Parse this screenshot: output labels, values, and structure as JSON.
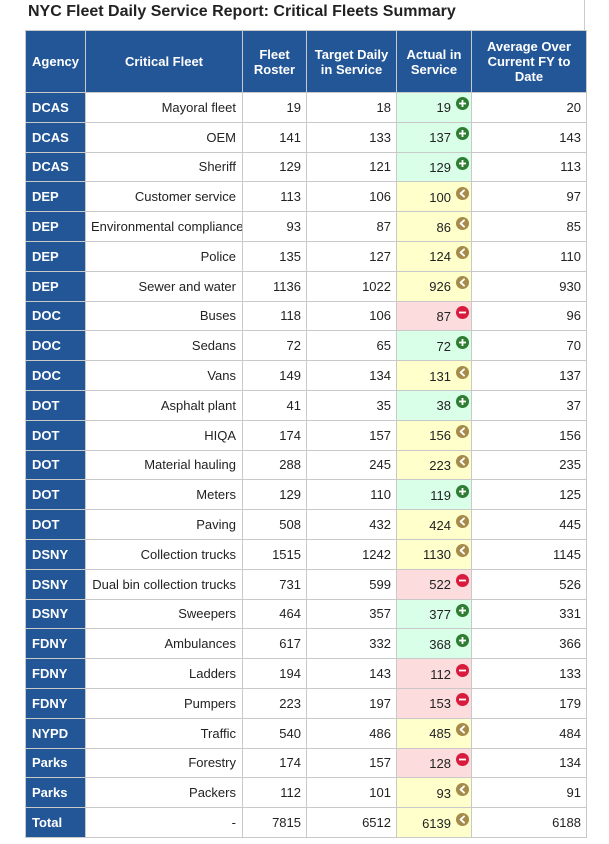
{
  "title": "NYC Fleet Daily Service Report: Critical Fleets Summary",
  "colors": {
    "header_bg": "#235697",
    "header_text": "#ffffff",
    "green_bg": "#d9ffe9",
    "yellow_bg": "#ffffcc",
    "red_bg": "#fcdcdc",
    "green_icon": "#2e7d32",
    "yellow_icon": "#a58a4a",
    "red_icon": "#d81b3c"
  },
  "columns": [
    "Agency",
    "Critical Fleet",
    "Fleet Roster",
    "Target Daily in Service",
    "Actual in Service",
    "Average Over Current FY to Date"
  ],
  "rows": [
    {
      "agency": "DCAS",
      "fleet": "Mayoral fleet",
      "roster": "19",
      "target": "18",
      "actual": "19",
      "average": "20",
      "status": "green",
      "icon": "plus-circle-icon"
    },
    {
      "agency": "DCAS",
      "fleet": "OEM",
      "roster": "141",
      "target": "133",
      "actual": "137",
      "average": "143",
      "status": "green",
      "icon": "plus-circle-icon"
    },
    {
      "agency": "DCAS",
      "fleet": "Sheriff",
      "roster": "129",
      "target": "121",
      "actual": "129",
      "average": "113",
      "status": "green",
      "icon": "plus-circle-icon"
    },
    {
      "agency": "DEP",
      "fleet": "Customer service",
      "roster": "113",
      "target": "106",
      "actual": "100",
      "average": "97",
      "status": "yellow",
      "icon": "chevron-left-circle-icon"
    },
    {
      "agency": "DEP",
      "fleet": "Environmental compliance",
      "roster": "93",
      "target": "87",
      "actual": "86",
      "average": "85",
      "status": "yellow",
      "icon": "chevron-left-circle-icon"
    },
    {
      "agency": "DEP",
      "fleet": "Police",
      "roster": "135",
      "target": "127",
      "actual": "124",
      "average": "110",
      "status": "yellow",
      "icon": "chevron-left-circle-icon"
    },
    {
      "agency": "DEP",
      "fleet": "Sewer and water",
      "roster": "1136",
      "target": "1022",
      "actual": "926",
      "average": "930",
      "status": "yellow",
      "icon": "chevron-left-circle-icon"
    },
    {
      "agency": "DOC",
      "fleet": "Buses",
      "roster": "118",
      "target": "106",
      "actual": "87",
      "average": "96",
      "status": "red",
      "icon": "minus-circle-icon"
    },
    {
      "agency": "DOC",
      "fleet": "Sedans",
      "roster": "72",
      "target": "65",
      "actual": "72",
      "average": "70",
      "status": "green",
      "icon": "plus-circle-icon"
    },
    {
      "agency": "DOC",
      "fleet": "Vans",
      "roster": "149",
      "target": "134",
      "actual": "131",
      "average": "137",
      "status": "yellow",
      "icon": "chevron-left-circle-icon"
    },
    {
      "agency": "DOT",
      "fleet": "Asphalt plant",
      "roster": "41",
      "target": "35",
      "actual": "38",
      "average": "37",
      "status": "green",
      "icon": "plus-circle-icon"
    },
    {
      "agency": "DOT",
      "fleet": "HIQA",
      "roster": "174",
      "target": "157",
      "actual": "156",
      "average": "156",
      "status": "yellow",
      "icon": "chevron-left-circle-icon"
    },
    {
      "agency": "DOT",
      "fleet": "Material hauling",
      "roster": "288",
      "target": "245",
      "actual": "223",
      "average": "235",
      "status": "yellow",
      "icon": "chevron-left-circle-icon"
    },
    {
      "agency": "DOT",
      "fleet": "Meters",
      "roster": "129",
      "target": "110",
      "actual": "119",
      "average": "125",
      "status": "green",
      "icon": "plus-circle-icon"
    },
    {
      "agency": "DOT",
      "fleet": "Paving",
      "roster": "508",
      "target": "432",
      "actual": "424",
      "average": "445",
      "status": "yellow",
      "icon": "chevron-left-circle-icon"
    },
    {
      "agency": "DSNY",
      "fleet": "Collection trucks",
      "roster": "1515",
      "target": "1242",
      "actual": "1130",
      "average": "1145",
      "status": "yellow",
      "icon": "chevron-left-circle-icon"
    },
    {
      "agency": "DSNY",
      "fleet": "Dual bin collection trucks",
      "roster": "731",
      "target": "599",
      "actual": "522",
      "average": "526",
      "status": "red",
      "icon": "minus-circle-icon"
    },
    {
      "agency": "DSNY",
      "fleet": "Sweepers",
      "roster": "464",
      "target": "357",
      "actual": "377",
      "average": "331",
      "status": "green",
      "icon": "plus-circle-icon"
    },
    {
      "agency": "FDNY",
      "fleet": "Ambulances",
      "roster": "617",
      "target": "332",
      "actual": "368",
      "average": "366",
      "status": "green",
      "icon": "plus-circle-icon"
    },
    {
      "agency": "FDNY",
      "fleet": "Ladders",
      "roster": "194",
      "target": "143",
      "actual": "112",
      "average": "133",
      "status": "red",
      "icon": "minus-circle-icon"
    },
    {
      "agency": "FDNY",
      "fleet": "Pumpers",
      "roster": "223",
      "target": "197",
      "actual": "153",
      "average": "179",
      "status": "red",
      "icon": "minus-circle-icon"
    },
    {
      "agency": "NYPD",
      "fleet": "Traffic",
      "roster": "540",
      "target": "486",
      "actual": "485",
      "average": "484",
      "status": "yellow",
      "icon": "chevron-left-circle-icon"
    },
    {
      "agency": "Parks",
      "fleet": "Forestry",
      "roster": "174",
      "target": "157",
      "actual": "128",
      "average": "134",
      "status": "red",
      "icon": "minus-circle-icon"
    },
    {
      "agency": "Parks",
      "fleet": "Packers",
      "roster": "112",
      "target": "101",
      "actual": "93",
      "average": "91",
      "status": "yellow",
      "icon": "chevron-left-circle-icon"
    },
    {
      "agency": "Total",
      "fleet": "-",
      "roster": "7815",
      "target": "6512",
      "actual": "6139",
      "average": "6188",
      "status": "yellow",
      "icon": "chevron-left-circle-icon"
    }
  ]
}
